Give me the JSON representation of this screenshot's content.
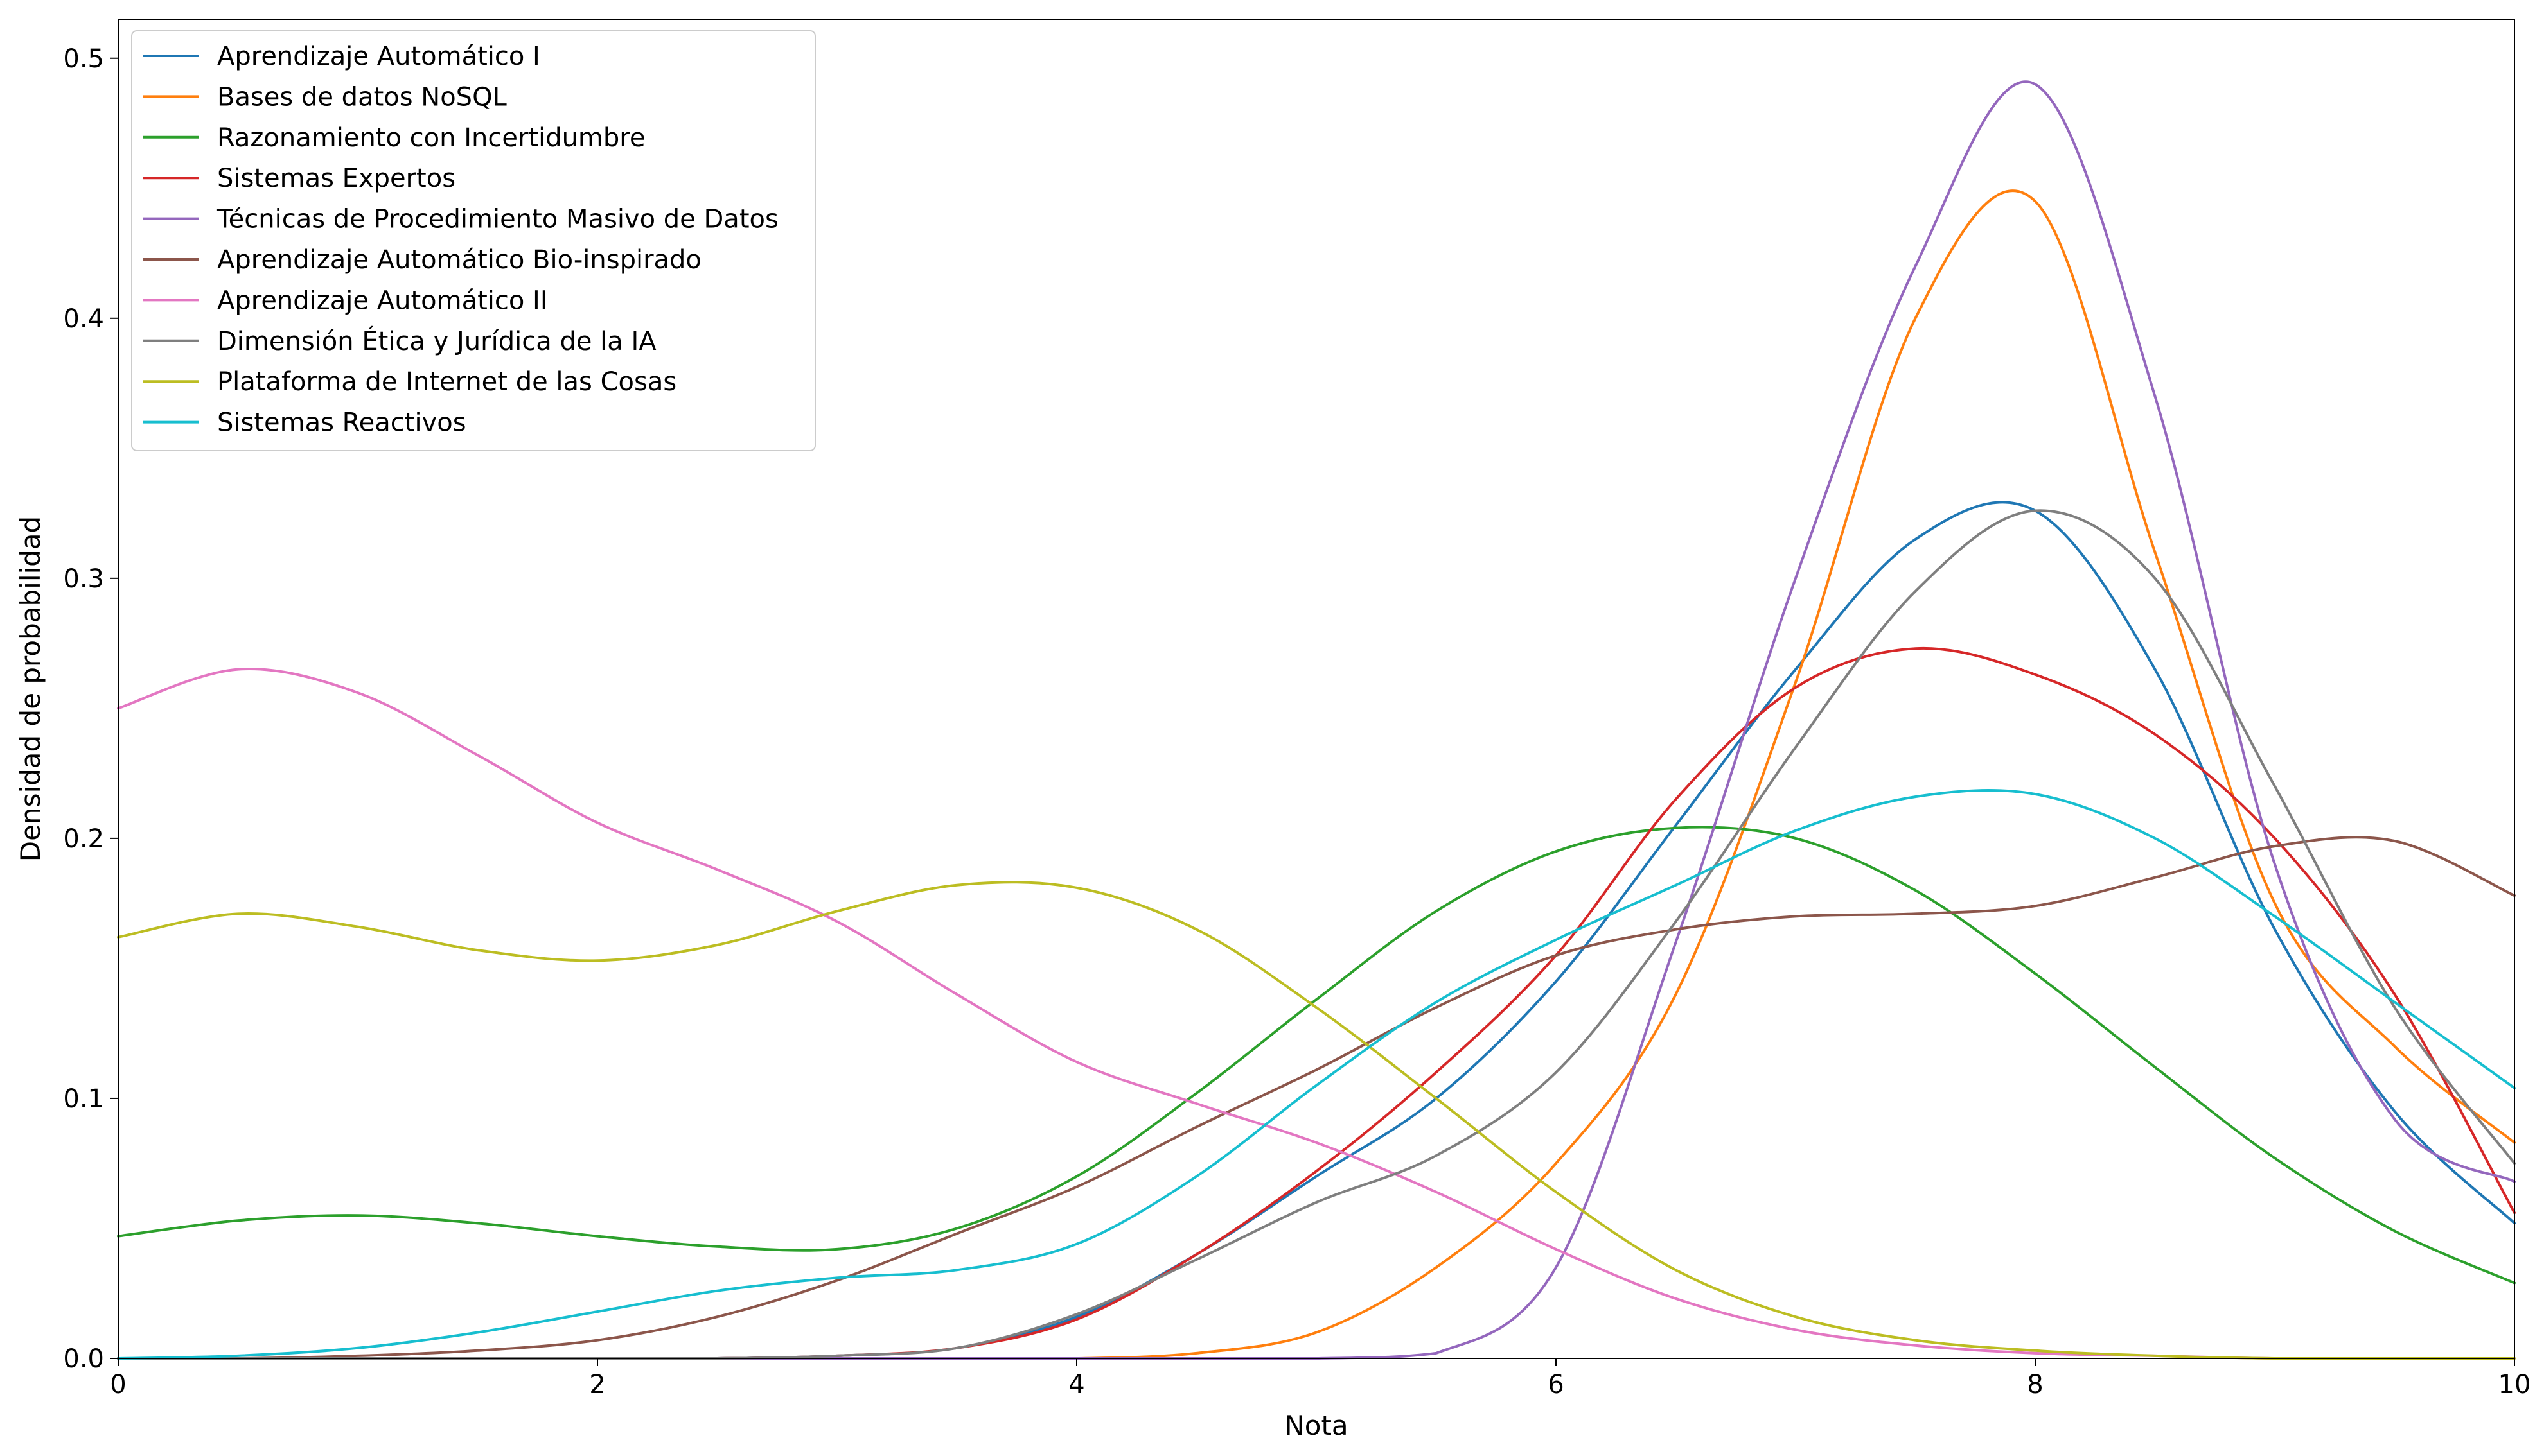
{
  "chart_data": {
    "type": "line",
    "title": "",
    "xlabel": "Nota",
    "ylabel": "Densidad de probabilidad",
    "xlim": [
      0,
      10
    ],
    "ylim": [
      0,
      0.515
    ],
    "xticks": [
      0,
      2,
      4,
      6,
      8,
      10
    ],
    "xtick_labels": [
      "0",
      "2",
      "4",
      "6",
      "8",
      "10"
    ],
    "yticks": [
      0.0,
      0.1,
      0.2,
      0.3,
      0.4,
      0.5
    ],
    "ytick_labels": [
      "0.0",
      "0.1",
      "0.2",
      "0.3",
      "0.4",
      "0.5"
    ],
    "grid": false,
    "legend_position": "upper-left",
    "x": [
      0,
      0.5,
      1,
      1.5,
      2,
      2.5,
      3,
      3.5,
      4,
      4.5,
      5,
      5.5,
      6,
      6.5,
      7,
      7.5,
      8,
      8.5,
      9,
      9.5,
      10
    ],
    "series": [
      {
        "name": "Aprendizaje Automático I",
        "color": "#1f77b4",
        "values": [
          0,
          0,
          0,
          0,
          0,
          0,
          0.001,
          0.004,
          0.016,
          0.04,
          0.07,
          0.1,
          0.145,
          0.205,
          0.265,
          0.315,
          0.326,
          0.265,
          0.165,
          0.095,
          0.052
        ]
      },
      {
        "name": "Bases de datos NoSQL",
        "color": "#ff7f0e",
        "values": [
          0,
          0,
          0,
          0,
          0,
          0,
          0,
          0,
          0,
          0.002,
          0.01,
          0.035,
          0.075,
          0.14,
          0.26,
          0.4,
          0.445,
          0.31,
          0.175,
          0.12,
          0.083
        ]
      },
      {
        "name": "Razonamiento con Incertidumbre",
        "color": "#2ca02c",
        "values": [
          0.047,
          0.053,
          0.055,
          0.052,
          0.047,
          0.043,
          0.042,
          0.05,
          0.07,
          0.102,
          0.138,
          0.172,
          0.195,
          0.204,
          0.2,
          0.18,
          0.148,
          0.112,
          0.077,
          0.049,
          0.029
        ]
      },
      {
        "name": "Sistemas Expertos",
        "color": "#d62728",
        "values": [
          0,
          0,
          0,
          0,
          0,
          0,
          0.001,
          0.004,
          0.015,
          0.04,
          0.072,
          0.11,
          0.155,
          0.215,
          0.258,
          0.273,
          0.263,
          0.24,
          0.2,
          0.14,
          0.056
        ]
      },
      {
        "name": "Técnicas de Procedimiento Masivo de Datos",
        "color": "#9467bd",
        "values": [
          0,
          0,
          0,
          0,
          0,
          0,
          0,
          0,
          0,
          0,
          0,
          0.002,
          0.035,
          0.16,
          0.3,
          0.42,
          0.49,
          0.37,
          0.19,
          0.092,
          0.068
        ]
      },
      {
        "name": "Aprendizaje Automático Bio-inspirado",
        "color": "#8c564b",
        "values": [
          0,
          0,
          0.001,
          0.003,
          0.007,
          0.016,
          0.03,
          0.048,
          0.066,
          0.089,
          0.111,
          0.135,
          0.155,
          0.165,
          0.17,
          0.171,
          0.174,
          0.185,
          0.197,
          0.199,
          0.178
        ]
      },
      {
        "name": "Aprendizaje Automático II",
        "color": "#e377c2",
        "values": [
          0.25,
          0.265,
          0.256,
          0.232,
          0.206,
          0.188,
          0.168,
          0.14,
          0.114,
          0.098,
          0.083,
          0.064,
          0.042,
          0.023,
          0.011,
          0.005,
          0.002,
          0.001,
          0,
          0,
          0
        ]
      },
      {
        "name": "Dimensión Ética y Jurídica de la IA",
        "color": "#7f7f7f",
        "values": [
          0,
          0,
          0,
          0,
          0,
          0,
          0.001,
          0.004,
          0.017,
          0.038,
          0.06,
          0.078,
          0.11,
          0.168,
          0.235,
          0.295,
          0.326,
          0.3,
          0.22,
          0.135,
          0.075
        ]
      },
      {
        "name": "Plataforma de Internet de las Cosas",
        "color": "#bcbd22",
        "values": [
          0.162,
          0.171,
          0.166,
          0.157,
          0.153,
          0.159,
          0.172,
          0.182,
          0.181,
          0.165,
          0.135,
          0.1,
          0.064,
          0.034,
          0.016,
          0.007,
          0.003,
          0.001,
          0,
          0,
          0
        ]
      },
      {
        "name": "Sistemas Reactivos",
        "color": "#17becf",
        "values": [
          0,
          0.001,
          0.004,
          0.01,
          0.018,
          0.026,
          0.031,
          0.034,
          0.044,
          0.07,
          0.105,
          0.137,
          0.161,
          0.182,
          0.203,
          0.216,
          0.217,
          0.2,
          0.17,
          0.137,
          0.104
        ]
      }
    ]
  }
}
